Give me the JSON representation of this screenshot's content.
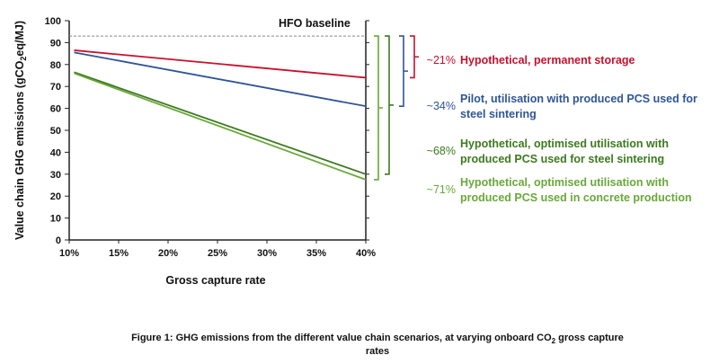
{
  "chart_data": {
    "type": "line",
    "title": "",
    "xlabel": "Gross capture rate",
    "ylabel_parts": [
      "Value chain GHG emissions (gCO",
      "2",
      "eq/MJ)"
    ],
    "xlim": [
      10,
      40
    ],
    "ylim": [
      0,
      100
    ],
    "x_ticks": [
      "10%",
      "15%",
      "20%",
      "25%",
      "30%",
      "35%",
      "40%"
    ],
    "y_ticks": [
      "0",
      "10",
      "20",
      "30",
      "40",
      "50",
      "60",
      "70",
      "80",
      "90",
      "100"
    ],
    "grid": false,
    "baseline": {
      "label": "HFO baseline",
      "value": 93,
      "style": "dashed",
      "color": "#888888"
    },
    "series": [
      {
        "name": "Hypothetical, permanent storage",
        "reduction": "~21%",
        "label_lines": [
          "Hypothetical, permanent storage"
        ],
        "color": "#c8102e",
        "x": [
          10.5,
          40
        ],
        "y": [
          86.5,
          74
        ]
      },
      {
        "name": "Pilot, utilisation with produced PCS used for steel sintering",
        "reduction": "~34%",
        "label_lines": [
          "Pilot, utilisation with produced PCS used for",
          "steel sintering"
        ],
        "color": "#2f5597",
        "x": [
          10.5,
          40
        ],
        "y": [
          85.5,
          61
        ]
      },
      {
        "name": "Hypothetical, optimised utilisation with produced PCS used for steel sintering",
        "reduction": "~68%",
        "label_lines": [
          "Hypothetical, optimised utilisation with",
          "produced PCS used for steel sintering"
        ],
        "color": "#3d7a1f",
        "x": [
          10.5,
          40
        ],
        "y": [
          76.5,
          30
        ]
      },
      {
        "name": "Hypothetical, optimised utilisation with produced PCS used in concrete production",
        "reduction": "~71%",
        "label_lines": [
          "Hypothetical, optimised utilisation with",
          "produced PCS used in concrete production"
        ],
        "color": "#6aa83a",
        "x": [
          10.5,
          40
        ],
        "y": [
          76,
          27.5
        ]
      }
    ]
  },
  "caption": {
    "line1_parts": [
      "Figure 1: GHG emissions from the different value chain scenarios, at varying onboard CO",
      "2",
      " gross capture"
    ],
    "line2": "rates"
  }
}
